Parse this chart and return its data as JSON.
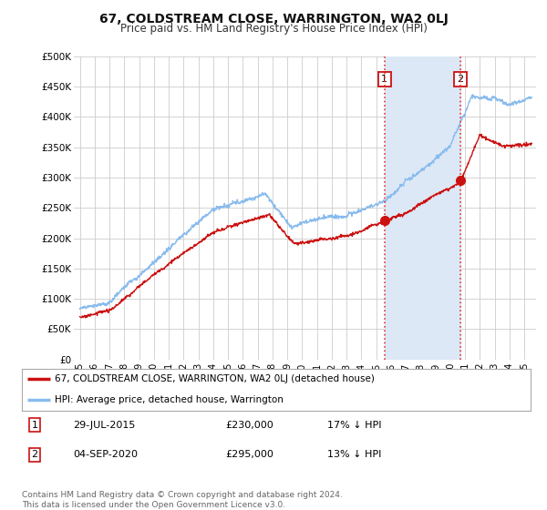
{
  "title": "67, COLDSTREAM CLOSE, WARRINGTON, WA2 0LJ",
  "subtitle": "Price paid vs. HM Land Registry's House Price Index (HPI)",
  "background_color": "#ffffff",
  "plot_bg_color": "#ffffff",
  "shade_color": "#dce8f5",
  "grid_color": "#cccccc",
  "ylim": [
    0,
    500000
  ],
  "yticks": [
    0,
    50000,
    100000,
    150000,
    200000,
    250000,
    300000,
    350000,
    400000,
    450000,
    500000
  ],
  "ytick_labels": [
    "£0",
    "£50K",
    "£100K",
    "£150K",
    "£200K",
    "£250K",
    "£300K",
    "£350K",
    "£400K",
    "£450K",
    "£500K"
  ],
  "sale1_date_num": 2015.57,
  "sale1_price": 230000,
  "sale2_date_num": 2020.67,
  "sale2_price": 295000,
  "vline_color": "#ee3333",
  "hpi_line_color": "#88bbee",
  "price_line_color": "#cc1111",
  "sale_marker_color": "#cc1111",
  "legend_label_price": "67, COLDSTREAM CLOSE, WARRINGTON, WA2 0LJ (detached house)",
  "legend_label_hpi": "HPI: Average price, detached house, Warrington",
  "footer_text": "Contains HM Land Registry data © Crown copyright and database right 2024.\nThis data is licensed under the Open Government Licence v3.0."
}
